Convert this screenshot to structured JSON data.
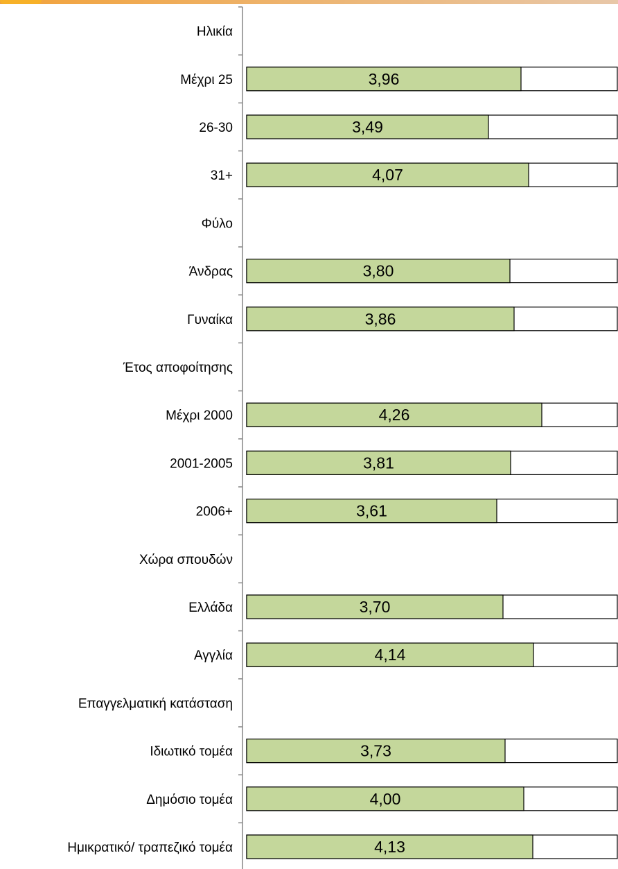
{
  "colors": {
    "bar_fill": "#c4d79b",
    "bar_outline": "#000000",
    "track_fill": "#ffffff",
    "axis": "#868686",
    "top_strip_left": "#f2a23a",
    "top_strip_right": "#e8c7a8",
    "top_logo": "#f7b128"
  },
  "chart_data": {
    "type": "bar",
    "orientation": "horizontal",
    "title": "",
    "xlabel": "",
    "ylabel": "",
    "xlim": [
      0,
      5
    ],
    "grid": false,
    "legend": "none",
    "categories": [
      "Ηλικία",
      "Μέχρι 25",
      "26-30",
      "31+",
      "Φύλο",
      "Άνδρας",
      "Γυναίκα",
      "Έτος αποφοίτησης",
      "Μέχρι 2000",
      "2001-2005",
      "2006+",
      "Χώρα σπουδών",
      "Ελλάδα",
      "Αγγλία",
      "Επαγγελματική κατάσταση",
      "Ιδιωτικό τομέα",
      "Δημόσιο τομέα",
      "Ημικρατικό/ τραπεζικό τομέα"
    ],
    "values": [
      null,
      3.96,
      3.49,
      4.07,
      null,
      3.8,
      3.86,
      null,
      4.26,
      3.81,
      3.61,
      null,
      3.7,
      4.14,
      null,
      3.73,
      4.0,
      4.13
    ],
    "value_labels": [
      null,
      "3,96",
      "3,49",
      "4,07",
      null,
      "3,80",
      "3,86",
      null,
      "4,26",
      "3,81",
      "3,61",
      null,
      "3,70",
      "4,14",
      null,
      "3,73",
      "4,00",
      "4,13"
    ]
  }
}
